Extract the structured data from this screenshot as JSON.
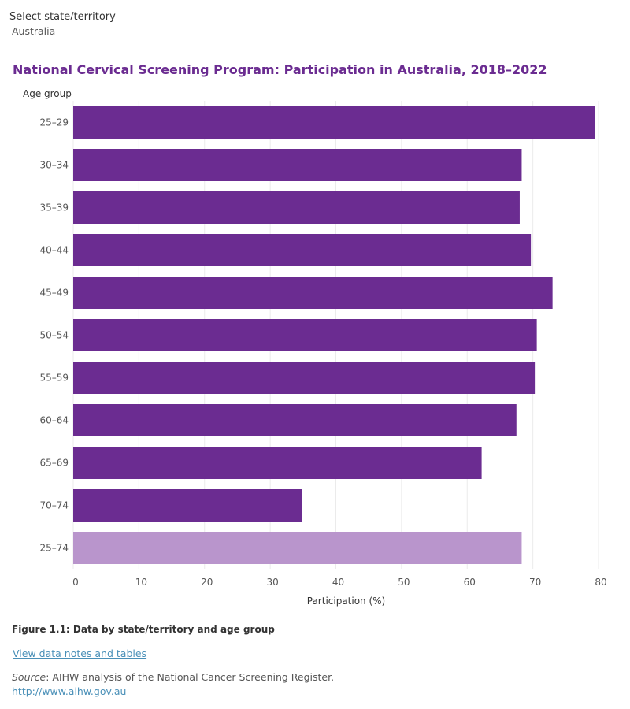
{
  "filter": {
    "label": "Select state/territory",
    "value": "Australia"
  },
  "chart_data": {
    "type": "bar",
    "orientation": "horizontal",
    "title": "National Cervical Screening Program: Participation in Australia, 2018–2022",
    "ylabel": "Age group",
    "xlabel": "Participation (%)",
    "xlim": [
      0,
      80
    ],
    "xticks": [
      0,
      10,
      20,
      30,
      40,
      50,
      60,
      70,
      80
    ],
    "grid": true,
    "categories": [
      "25–29",
      "30–34",
      "35–39",
      "40–44",
      "45–49",
      "50–54",
      "55–59",
      "60–64",
      "65–69",
      "70–74",
      "25–74"
    ],
    "values": [
      79.5,
      68.3,
      68.0,
      69.7,
      73.0,
      70.6,
      70.3,
      67.5,
      62.2,
      34.9,
      68.3
    ],
    "colors": {
      "bar": "#6b2c91",
      "total_bar": "#b995cc",
      "grid": "#ebebeb"
    }
  },
  "caption": "Figure 1.1: Data by state/territory and age group",
  "notes_link": "View data notes and tables",
  "source": {
    "label": "Source",
    "text": ": AIHW analysis of the National Cancer Screening Register."
  },
  "site_link": "http://www.aihw.gov.au"
}
